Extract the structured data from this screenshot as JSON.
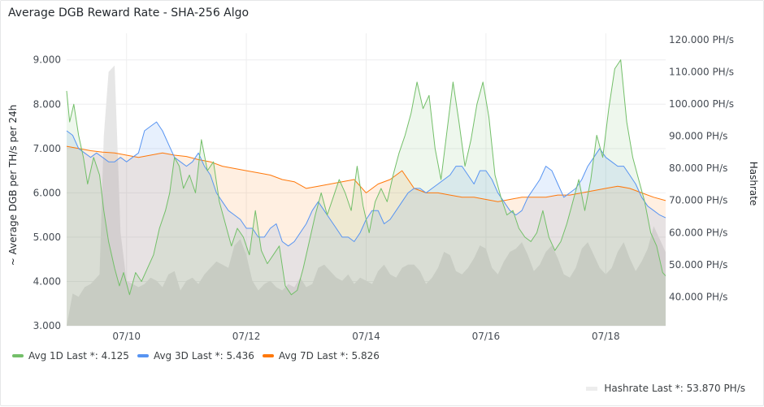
{
  "panel": {
    "title": "Average DGB Reward Rate - SHA-256 Algo"
  },
  "colors": {
    "avg1d": "#73bf69",
    "avg3d": "#5794f2",
    "avg7d": "#ff780a",
    "hashrate": "#e6e6e6"
  },
  "chart_data": {
    "type": "line",
    "title": "Average DGB Reward Rate - SHA-256 Algo",
    "ylabel": "~ Average DGB per TH/s per 24h",
    "y2label": "Hashrate",
    "ylim": [
      3.0,
      9.6
    ],
    "y2lim": [
      31.0,
      122.0
    ],
    "yticks": [
      "3.000",
      "4.000",
      "5.000",
      "6.000",
      "7.000",
      "8.000",
      "9.000"
    ],
    "y2ticks": [
      "40.000 PH/s",
      "50.000 PH/s",
      "60.000 PH/s",
      "70.000 PH/s",
      "80.000 PH/s",
      "90.000 PH/s",
      "100.000 PH/s",
      "110.000 PH/s",
      "120.000 PH/s"
    ],
    "xlim": [
      9.0,
      19.0
    ],
    "xticks": [
      {
        "v": 10,
        "label": "07/10"
      },
      {
        "v": 12,
        "label": "07/12"
      },
      {
        "v": 14,
        "label": "07/14"
      },
      {
        "v": 16,
        "label": "07/16"
      },
      {
        "v": 18,
        "label": "07/18"
      }
    ],
    "series": [
      {
        "name": "Avg 1D",
        "last": "Last *: 4.125",
        "x": [
          9.0,
          9.05,
          9.12,
          9.2,
          9.28,
          9.35,
          9.45,
          9.55,
          9.62,
          9.7,
          9.8,
          9.88,
          9.95,
          10.05,
          10.15,
          10.25,
          10.35,
          10.45,
          10.55,
          10.65,
          10.72,
          10.8,
          10.88,
          10.95,
          11.05,
          11.15,
          11.25,
          11.35,
          11.45,
          11.55,
          11.65,
          11.75,
          11.85,
          11.95,
          12.05,
          12.15,
          12.25,
          12.35,
          12.45,
          12.55,
          12.65,
          12.75,
          12.85,
          12.95,
          13.05,
          13.15,
          13.25,
          13.35,
          13.45,
          13.55,
          13.65,
          13.75,
          13.85,
          13.95,
          14.05,
          14.15,
          14.25,
          14.35,
          14.45,
          14.55,
          14.65,
          14.75,
          14.85,
          14.95,
          15.05,
          15.15,
          15.25,
          15.35,
          15.45,
          15.55,
          15.65,
          15.75,
          15.85,
          15.95,
          16.05,
          16.15,
          16.25,
          16.35,
          16.45,
          16.55,
          16.65,
          16.75,
          16.85,
          16.95,
          17.05,
          17.15,
          17.25,
          17.35,
          17.45,
          17.55,
          17.65,
          17.75,
          17.85,
          17.95,
          18.05,
          18.15,
          18.25,
          18.35,
          18.45,
          18.55,
          18.65,
          18.75,
          18.85,
          18.95,
          19.0
        ],
        "y": [
          8.3,
          7.6,
          8.0,
          7.3,
          6.8,
          6.2,
          6.8,
          6.4,
          5.6,
          4.9,
          4.3,
          3.9,
          4.2,
          3.7,
          4.2,
          4.0,
          4.3,
          4.6,
          5.2,
          5.6,
          6.0,
          6.8,
          6.6,
          6.1,
          6.4,
          6.0,
          7.2,
          6.5,
          6.7,
          5.8,
          5.3,
          4.8,
          5.2,
          5.0,
          4.6,
          5.6,
          4.7,
          4.4,
          4.6,
          4.8,
          3.9,
          3.7,
          3.8,
          4.3,
          4.9,
          5.5,
          6.0,
          5.5,
          5.9,
          6.3,
          6.0,
          5.6,
          6.6,
          5.7,
          5.1,
          5.8,
          6.1,
          5.8,
          6.4,
          6.9,
          7.3,
          7.8,
          8.5,
          7.9,
          8.2,
          7.0,
          6.3,
          7.4,
          8.5,
          7.6,
          6.6,
          7.2,
          8.0,
          8.5,
          7.7,
          6.4,
          5.9,
          5.5,
          5.6,
          5.2,
          5.0,
          4.9,
          5.1,
          5.6,
          5.0,
          4.7,
          4.9,
          5.3,
          5.8,
          6.3,
          5.6,
          6.3,
          7.3,
          6.8,
          7.9,
          8.8,
          9.0,
          7.6,
          6.8,
          6.3,
          5.8,
          5.1,
          4.8,
          4.2,
          4.125
        ],
        "fill": 0.12
      },
      {
        "name": "Avg 3D",
        "last": "Last *: 5.436",
        "x": [
          9.0,
          9.1,
          9.2,
          9.3,
          9.4,
          9.5,
          9.6,
          9.7,
          9.8,
          9.9,
          10.0,
          10.1,
          10.2,
          10.3,
          10.4,
          10.5,
          10.6,
          10.7,
          10.8,
          10.9,
          11.0,
          11.1,
          11.2,
          11.3,
          11.4,
          11.5,
          11.6,
          11.7,
          11.8,
          11.9,
          12.0,
          12.1,
          12.2,
          12.3,
          12.4,
          12.5,
          12.6,
          12.7,
          12.8,
          12.9,
          13.0,
          13.1,
          13.2,
          13.3,
          13.4,
          13.5,
          13.6,
          13.7,
          13.8,
          13.9,
          14.0,
          14.1,
          14.2,
          14.3,
          14.4,
          14.5,
          14.6,
          14.7,
          14.8,
          14.9,
          15.0,
          15.1,
          15.2,
          15.3,
          15.4,
          15.5,
          15.6,
          15.7,
          15.8,
          15.9,
          16.0,
          16.1,
          16.2,
          16.3,
          16.4,
          16.5,
          16.6,
          16.7,
          16.8,
          16.9,
          17.0,
          17.1,
          17.2,
          17.3,
          17.4,
          17.5,
          17.6,
          17.7,
          17.8,
          17.9,
          18.0,
          18.1,
          18.2,
          18.3,
          18.4,
          18.5,
          18.6,
          18.7,
          18.8,
          18.9,
          19.0
        ],
        "y": [
          7.4,
          7.3,
          7.0,
          6.9,
          6.8,
          6.9,
          6.8,
          6.7,
          6.7,
          6.8,
          6.7,
          6.8,
          6.9,
          7.4,
          7.5,
          7.6,
          7.4,
          7.1,
          6.8,
          6.7,
          6.6,
          6.7,
          6.9,
          6.6,
          6.4,
          6.0,
          5.8,
          5.6,
          5.5,
          5.4,
          5.2,
          5.2,
          5.0,
          5.0,
          5.2,
          5.3,
          4.9,
          4.8,
          4.9,
          5.1,
          5.3,
          5.6,
          5.8,
          5.6,
          5.4,
          5.2,
          5.0,
          5.0,
          4.9,
          5.1,
          5.4,
          5.6,
          5.6,
          5.3,
          5.4,
          5.6,
          5.8,
          6.0,
          6.1,
          6.1,
          6.0,
          6.1,
          6.2,
          6.3,
          6.4,
          6.6,
          6.6,
          6.4,
          6.2,
          6.5,
          6.5,
          6.3,
          6.0,
          5.8,
          5.6,
          5.5,
          5.6,
          5.9,
          6.1,
          6.3,
          6.6,
          6.5,
          6.2,
          5.9,
          6.0,
          6.1,
          6.3,
          6.6,
          6.8,
          7.0,
          6.8,
          6.7,
          6.6,
          6.6,
          6.4,
          6.2,
          5.9,
          5.7,
          5.6,
          5.5,
          5.436
        ],
        "fill": 0.14
      },
      {
        "name": "Avg 7D",
        "last": "Last *: 5.826",
        "x": [
          9.0,
          9.2,
          9.4,
          9.6,
          9.8,
          10.0,
          10.2,
          10.4,
          10.6,
          10.8,
          11.0,
          11.2,
          11.4,
          11.6,
          11.8,
          12.0,
          12.2,
          12.4,
          12.6,
          12.8,
          13.0,
          13.2,
          13.4,
          13.6,
          13.8,
          14.0,
          14.2,
          14.4,
          14.6,
          14.8,
          15.0,
          15.2,
          15.4,
          15.6,
          15.8,
          16.0,
          16.2,
          16.4,
          16.6,
          16.8,
          17.0,
          17.2,
          17.4,
          17.6,
          17.8,
          18.0,
          18.2,
          18.4,
          18.6,
          18.8,
          19.0
        ],
        "y": [
          7.05,
          7.0,
          6.95,
          6.92,
          6.9,
          6.85,
          6.8,
          6.85,
          6.9,
          6.85,
          6.82,
          6.75,
          6.7,
          6.6,
          6.55,
          6.5,
          6.45,
          6.4,
          6.3,
          6.25,
          6.1,
          6.15,
          6.2,
          6.25,
          6.3,
          6.0,
          6.2,
          6.3,
          6.5,
          6.1,
          6.0,
          6.0,
          5.95,
          5.9,
          5.9,
          5.85,
          5.8,
          5.85,
          5.9,
          5.9,
          5.9,
          5.95,
          5.95,
          6.0,
          6.05,
          6.1,
          6.15,
          6.1,
          6.0,
          5.9,
          5.826
        ],
        "fill": 0.12
      },
      {
        "name": "Hashrate",
        "last": "Last *: 53.870 PH/s",
        "axis": "right",
        "x": [
          9.0,
          9.1,
          9.2,
          9.3,
          9.4,
          9.55,
          9.62,
          9.7,
          9.8,
          9.9,
          10.0,
          10.1,
          10.2,
          10.3,
          10.4,
          10.5,
          10.6,
          10.7,
          10.8,
          10.9,
          11.0,
          11.1,
          11.2,
          11.3,
          11.4,
          11.5,
          11.6,
          11.7,
          11.8,
          11.9,
          12.0,
          12.1,
          12.2,
          12.3,
          12.4,
          12.5,
          12.6,
          12.7,
          12.8,
          12.9,
          13.0,
          13.1,
          13.2,
          13.3,
          13.4,
          13.5,
          13.6,
          13.7,
          13.8,
          13.9,
          14.0,
          14.1,
          14.2,
          14.3,
          14.4,
          14.5,
          14.6,
          14.7,
          14.8,
          14.9,
          15.0,
          15.1,
          15.2,
          15.3,
          15.4,
          15.5,
          15.6,
          15.7,
          15.8,
          15.9,
          16.0,
          16.1,
          16.2,
          16.3,
          16.4,
          16.5,
          16.6,
          16.7,
          16.8,
          16.9,
          17.0,
          17.1,
          17.2,
          17.3,
          17.4,
          17.5,
          17.6,
          17.7,
          17.8,
          17.9,
          18.0,
          18.1,
          18.2,
          18.3,
          18.4,
          18.5,
          18.6,
          18.7,
          18.8,
          18.9,
          19.0
        ],
        "y": [
          31,
          41,
          40,
          43,
          44,
          47,
          90,
          110,
          112,
          60,
          45,
          44,
          43,
          44,
          46,
          45,
          43,
          47,
          48,
          42,
          45,
          46,
          44,
          47,
          49,
          51,
          50,
          49,
          56,
          58,
          53,
          45,
          42,
          44,
          45,
          43,
          42,
          44,
          43,
          46,
          43,
          44,
          49,
          50,
          48,
          46,
          45,
          47,
          44,
          46,
          45,
          44,
          48,
          50,
          47,
          46,
          49,
          50,
          50,
          48,
          44,
          46,
          49,
          54,
          53,
          48,
          47,
          49,
          52,
          56,
          55,
          49,
          47,
          51,
          54,
          55,
          57,
          53,
          48,
          50,
          54,
          56,
          52,
          47,
          46,
          49,
          55,
          57,
          53,
          49,
          47,
          49,
          54,
          57,
          52,
          48,
          51,
          55,
          62,
          58,
          53.87
        ],
        "fill": 1.0
      }
    ]
  }
}
